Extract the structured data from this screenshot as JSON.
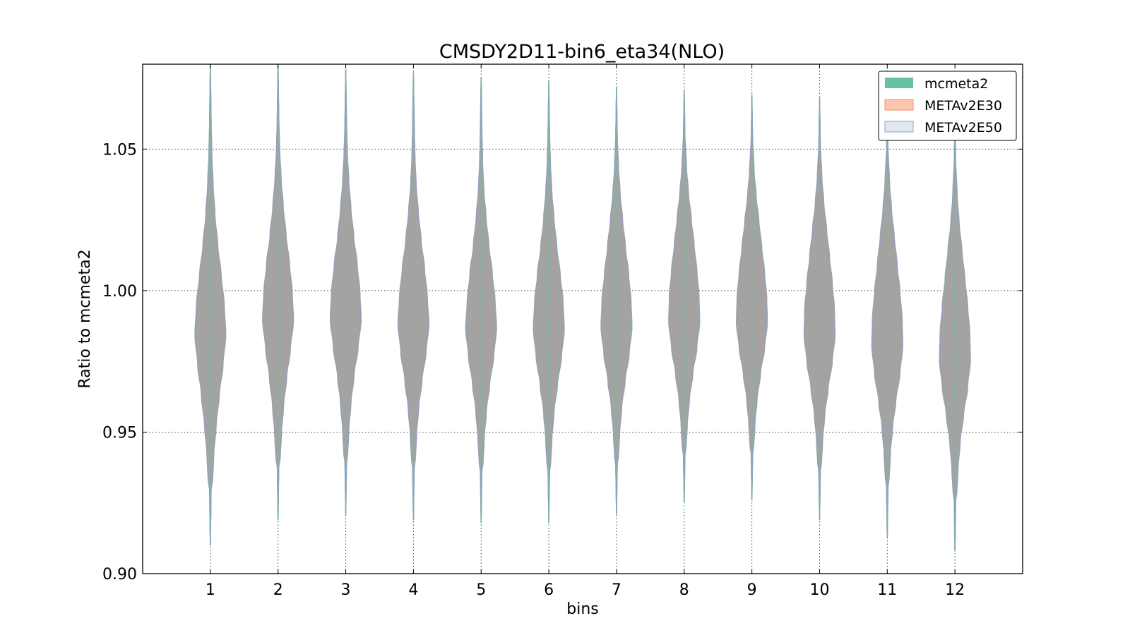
{
  "chart_data": {
    "type": "violin",
    "title": "CMSDY2D11-bin6_eta34(NLO)",
    "xlabel": "bins",
    "ylabel": "Ratio to mcmeta2",
    "ylim": [
      0.9,
      1.08
    ],
    "xlim": [
      0,
      13
    ],
    "grid": true,
    "legend_position": "top-right",
    "yticks": [
      0.9,
      0.95,
      1.0,
      1.05
    ],
    "ytick_labels": [
      "0.90",
      "0.95",
      "1.00",
      "1.05"
    ],
    "categories": [
      "1",
      "2",
      "3",
      "4",
      "5",
      "6",
      "7",
      "8",
      "9",
      "10",
      "11",
      "12"
    ],
    "series": [
      {
        "name": "mcmeta2",
        "color": "#66c2a5",
        "violins": [
          {
            "bin": 1,
            "min": 0.91,
            "max": 1.08,
            "center": 1.0,
            "width": 0.46,
            "shape": [
              0.05,
              0.08,
              0.14,
              0.22,
              0.38,
              0.58,
              0.82,
              1.0,
              0.9,
              0.7,
              0.48,
              0.3,
              0.18,
              0.1,
              0.06,
              0.04,
              0.03
            ]
          },
          {
            "bin": 2,
            "min": 0.919,
            "max": 1.08,
            "center": 1.0,
            "width": 0.46,
            "shape": [
              0.05,
              0.08,
              0.13,
              0.22,
              0.36,
              0.56,
              0.8,
              1.0,
              0.92,
              0.74,
              0.52,
              0.34,
              0.2,
              0.11,
              0.06,
              0.04,
              0.03
            ]
          },
          {
            "bin": 3,
            "min": 0.921,
            "max": 1.078,
            "center": 1.0,
            "width": 0.46,
            "shape": [
              0.05,
              0.07,
              0.12,
              0.2,
              0.34,
              0.54,
              0.8,
              1.0,
              0.92,
              0.74,
              0.52,
              0.34,
              0.2,
              0.11,
              0.06,
              0.04,
              0.03
            ]
          },
          {
            "bin": 4,
            "min": 0.919,
            "max": 1.077,
            "center": 1.0,
            "width": 0.46,
            "shape": [
              0.05,
              0.07,
              0.12,
              0.2,
              0.34,
              0.56,
              0.82,
              1.0,
              0.9,
              0.72,
              0.5,
              0.32,
              0.18,
              0.1,
              0.06,
              0.04,
              0.03
            ]
          },
          {
            "bin": 5,
            "min": 0.918,
            "max": 1.075,
            "center": 1.0,
            "width": 0.46,
            "shape": [
              0.05,
              0.07,
              0.12,
              0.2,
              0.34,
              0.56,
              0.82,
              1.0,
              0.9,
              0.72,
              0.5,
              0.32,
              0.18,
              0.1,
              0.06,
              0.04,
              0.03
            ]
          },
          {
            "bin": 6,
            "min": 0.918,
            "max": 1.074,
            "center": 1.0,
            "width": 0.46,
            "shape": [
              0.05,
              0.07,
              0.12,
              0.2,
              0.34,
              0.56,
              0.82,
              1.0,
              0.92,
              0.74,
              0.52,
              0.34,
              0.2,
              0.11,
              0.06,
              0.04,
              0.03
            ]
          },
          {
            "bin": 7,
            "min": 0.921,
            "max": 1.072,
            "center": 1.0,
            "width": 0.46,
            "shape": [
              0.05,
              0.07,
              0.12,
              0.2,
              0.34,
              0.56,
              0.82,
              1.0,
              0.94,
              0.78,
              0.58,
              0.4,
              0.24,
              0.13,
              0.07,
              0.04,
              0.03
            ]
          },
          {
            "bin": 8,
            "min": 0.925,
            "max": 1.071,
            "center": 1.0,
            "width": 0.46,
            "shape": [
              0.05,
              0.07,
              0.12,
              0.2,
              0.34,
              0.56,
              0.82,
              1.0,
              0.96,
              0.82,
              0.64,
              0.46,
              0.28,
              0.15,
              0.08,
              0.04,
              0.03
            ]
          },
          {
            "bin": 9,
            "min": 0.926,
            "max": 1.069,
            "center": 1.0,
            "width": 0.46,
            "shape": [
              0.05,
              0.07,
              0.12,
              0.2,
              0.34,
              0.56,
              0.82,
              1.0,
              0.96,
              0.82,
              0.64,
              0.46,
              0.28,
              0.15,
              0.08,
              0.04,
              0.03
            ]
          },
          {
            "bin": 10,
            "min": 0.919,
            "max": 1.068,
            "center": 1.0,
            "width": 0.46,
            "shape": [
              0.05,
              0.07,
              0.12,
              0.2,
              0.34,
              0.56,
              0.82,
              1.0,
              0.96,
              0.82,
              0.64,
              0.46,
              0.28,
              0.15,
              0.08,
              0.04,
              0.03
            ]
          },
          {
            "bin": 11,
            "min": 0.913,
            "max": 1.067,
            "center": 1.0,
            "width": 0.46,
            "shape": [
              0.05,
              0.07,
              0.12,
              0.2,
              0.34,
              0.56,
              0.82,
              1.0,
              0.96,
              0.82,
              0.64,
              0.46,
              0.28,
              0.15,
              0.08,
              0.04,
              0.03
            ]
          },
          {
            "bin": 12,
            "min": 0.908,
            "max": 1.062,
            "center": 1.0,
            "width": 0.46,
            "shape": [
              0.05,
              0.07,
              0.12,
              0.2,
              0.34,
              0.56,
              0.82,
              1.0,
              0.96,
              0.82,
              0.64,
              0.46,
              0.28,
              0.15,
              0.08,
              0.04,
              0.03
            ]
          }
        ]
      },
      {
        "name": "METAv2E30",
        "color": "#fc8d62"
      },
      {
        "name": "METAv2E50",
        "color": "#8da0cb"
      }
    ]
  }
}
